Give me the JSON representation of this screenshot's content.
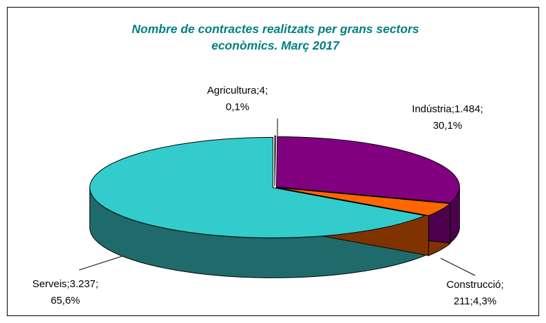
{
  "chart_data": {
    "type": "pie3d",
    "title": "Nombre de contractes realitzats per grans sectors econòmics. Març 2017",
    "categories": [
      "Agricultura",
      "Indústria",
      "Construcció",
      "Serveis"
    ],
    "values": [
      4,
      1484,
      211,
      3237
    ],
    "value_labels": [
      "4",
      "1.484",
      "211",
      "3.237"
    ],
    "percents": [
      0.1,
      30.1,
      4.3,
      65.6
    ],
    "percent_labels": [
      "0,1%",
      "30,1%",
      "4,3%",
      "65,6%"
    ],
    "separator": ";",
    "colors": [
      "#ffffff",
      "#800080",
      "#ff6600",
      "#33cccc"
    ],
    "side_colors": [
      "#cccccc",
      "#4d004d",
      "#803300",
      "#1f6b6b"
    ]
  }
}
